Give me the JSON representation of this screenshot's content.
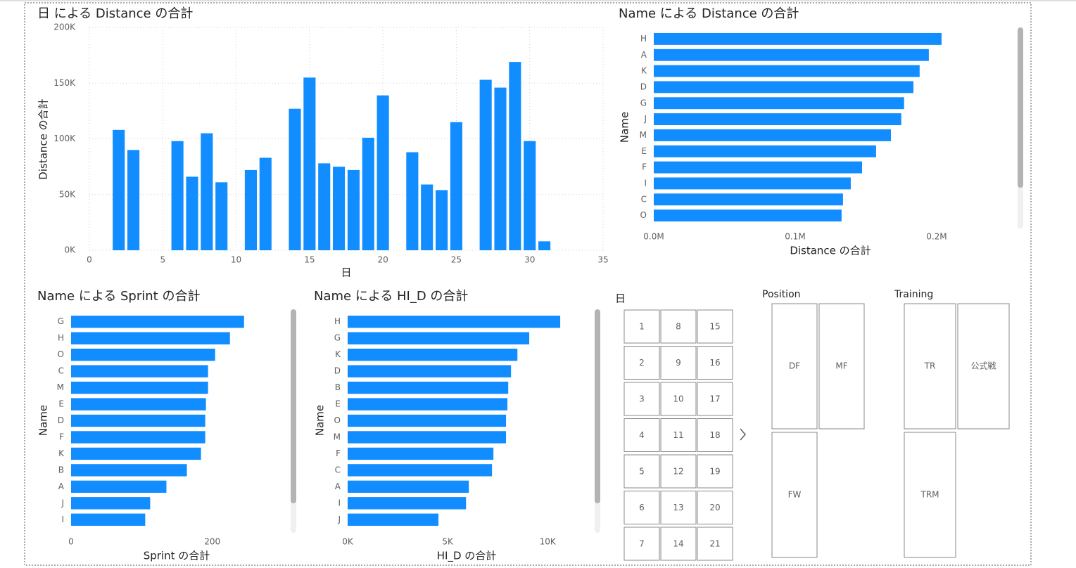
{
  "chart_data": [
    {
      "type": "bar",
      "title": "日 による Distance の合計",
      "x_label": "日",
      "y_label": "Distance の合計",
      "x": [
        2,
        3,
        6,
        7,
        8,
        9,
        11,
        12,
        14,
        15,
        16,
        17,
        18,
        19,
        20,
        22,
        23,
        24,
        25,
        27,
        28,
        29,
        30,
        31
      ],
      "values": [
        108000,
        90000,
        98000,
        66000,
        105000,
        61000,
        72000,
        83000,
        127000,
        155000,
        78000,
        75000,
        72000,
        101000,
        139000,
        88000,
        59000,
        54000,
        115000,
        153000,
        146000,
        169000,
        98000,
        8000
      ],
      "color": "#118dff",
      "xlim": [
        0,
        35
      ],
      "xticks": [
        0,
        5,
        10,
        15,
        20,
        25,
        30,
        35
      ],
      "ylim": [
        0,
        200000
      ],
      "yticks": [
        {
          "value": 0,
          "label": "0K"
        },
        {
          "value": 50000,
          "label": "50K"
        },
        {
          "value": 100000,
          "label": "100K"
        },
        {
          "value": 150000,
          "label": "150K"
        },
        {
          "value": 200000,
          "label": "200K"
        }
      ],
      "grid": true
    },
    {
      "type": "hbar",
      "title": "Name による Distance の合計",
      "x_label": "Distance の合計",
      "y_label": "Name",
      "categories": [
        "H",
        "A",
        "K",
        "D",
        "G",
        "J",
        "M",
        "E",
        "F",
        "I",
        "C",
        "O"
      ],
      "values": [
        203500,
        194500,
        188000,
        183600,
        177000,
        175000,
        167700,
        157200,
        147300,
        139300,
        133800,
        132800
      ],
      "color": "#118dff",
      "xlim": [
        0,
        207000
      ],
      "xticks": [
        {
          "value": 0,
          "label": "0.0M"
        },
        {
          "value": 100000,
          "label": "0.1M"
        },
        {
          "value": 200000,
          "label": "0.2M"
        }
      ]
    },
    {
      "type": "hbar",
      "title": "Name による Sprint の合計",
      "x_label": "Sprint の合計",
      "y_label": "Name",
      "categories": [
        "G",
        "H",
        "O",
        "C",
        "M",
        "E",
        "D",
        "F",
        "K",
        "B",
        "A",
        "J",
        "I"
      ],
      "values": [
        245,
        225,
        204,
        194,
        194,
        191,
        190,
        190,
        184,
        164,
        135,
        112,
        105
      ],
      "color": "#118dff",
      "xlim": [
        0,
        300
      ],
      "xticks": [
        0,
        200
      ]
    },
    {
      "type": "hbar",
      "title": "Name による HI_D の合計",
      "x_label": "HI_D の合計",
      "y_label": "Name",
      "categories": [
        "H",
        "G",
        "K",
        "D",
        "B",
        "E",
        "O",
        "M",
        "F",
        "C",
        "A",
        "I",
        "J"
      ],
      "values": [
        10630,
        9080,
        8490,
        8170,
        8030,
        7990,
        7920,
        7920,
        7290,
        7220,
        6060,
        5920,
        4540
      ],
      "color": "#118dff",
      "xlim": [
        0,
        12000
      ],
      "xticks": [
        {
          "value": 0,
          "label": "0K"
        },
        {
          "value": 5000,
          "label": "5K"
        },
        {
          "value": 10000,
          "label": "10K"
        }
      ]
    }
  ],
  "slicers": [
    {
      "title": "日",
      "items": [
        "1",
        "2",
        "3",
        "4",
        "5",
        "6",
        "7",
        "8",
        "9",
        "10",
        "11",
        "12",
        "13",
        "14",
        "15",
        "16",
        "17",
        "18",
        "19",
        "20",
        "21"
      ]
    },
    {
      "title": "Position",
      "items": [
        "DF",
        "MF",
        "FW"
      ]
    },
    {
      "title": "Training",
      "items": [
        "TR",
        "公式戦",
        "TRM"
      ]
    }
  ]
}
